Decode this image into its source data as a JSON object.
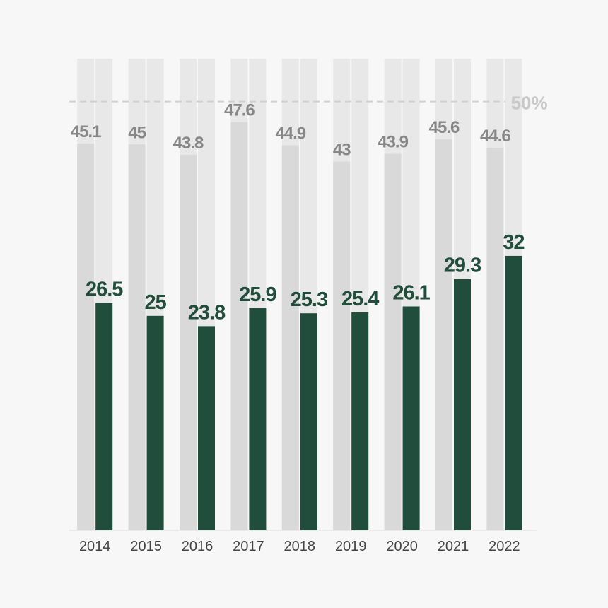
{
  "chart_data": {
    "type": "bar",
    "categories": [
      "2014",
      "2015",
      "2016",
      "2017",
      "2018",
      "2019",
      "2020",
      "2021",
      "2022"
    ],
    "series": [
      {
        "color": "#d9d9d9",
        "label_color": "#878787",
        "values": [
          45.1,
          45.0,
          43.8,
          47.6,
          44.9,
          43.0,
          43.9,
          45.6,
          44.6
        ]
      },
      {
        "color": "#214d3c",
        "label_color": "#214d3c",
        "values": [
          26.5,
          25.0,
          23.8,
          25.9,
          25.3,
          25.4,
          26.1,
          29.3,
          32.0
        ]
      }
    ],
    "ylim": [
      0,
      55
    ],
    "yticks": [
      {
        "value": 50,
        "label": "50%"
      }
    ],
    "value_labels": true
  }
}
